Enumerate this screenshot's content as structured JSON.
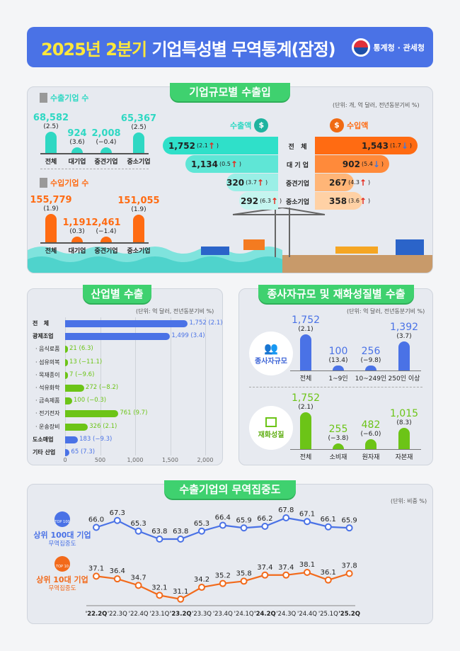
{
  "header": {
    "title_year": "2025년 2분기",
    "title_rest": "기업특성별 무역통계(잠정)",
    "agency": "통계청 · 관세청"
  },
  "colors": {
    "header": "#4a72e6",
    "accent_title": "#ffe83a",
    "pill": "#3fd16f",
    "export": "#2fd8c3",
    "import": "#ff6b12",
    "blue": "#4a72e6",
    "green": "#6cc417"
  },
  "section1": {
    "title": "기업규모별 수출입",
    "unit": "(단위: 개, 억 달러, 전년동분기비 %)",
    "export_firms": {
      "label": "수출기업 수",
      "items": [
        {
          "cat": "전체",
          "value": 68582,
          "text": "68,582",
          "pct": "(2.5)"
        },
        {
          "cat": "대기업",
          "value": 924,
          "text": "924",
          "pct": "(3.6)"
        },
        {
          "cat": "중견기업",
          "value": 2008,
          "text": "2,008",
          "pct": "(−0.4)"
        },
        {
          "cat": "중소기업",
          "value": 65367,
          "text": "65,367",
          "pct": "(2.5)"
        }
      ]
    },
    "import_firms": {
      "label": "수입기업 수",
      "items": [
        {
          "cat": "전체",
          "value": 155779,
          "text": "155,779",
          "pct": "(1.9)"
        },
        {
          "cat": "대기업",
          "value": 1191,
          "text": "1,191",
          "pct": "(0.3)"
        },
        {
          "cat": "중견기업",
          "value": 2461,
          "text": "2,461",
          "pct": "(−1.4)"
        },
        {
          "cat": "중소기업",
          "value": 151055,
          "text": "151,055",
          "pct": "(1.9)"
        }
      ]
    },
    "export_amount_label": "수출액",
    "import_amount_label": "수입액",
    "categories": [
      "전   체",
      "대 기 업",
      "중견기업",
      "중소기업"
    ],
    "exports": [
      {
        "value": "1,752",
        "pct": "(2.1",
        "dir": "up"
      },
      {
        "value": "1,134",
        "pct": "(0.5",
        "dir": "up"
      },
      {
        "value": "320",
        "pct": "(3.7",
        "dir": "up"
      },
      {
        "value": "292",
        "pct": "(6.3",
        "dir": "up"
      }
    ],
    "imports": [
      {
        "value": "1,543",
        "pct": "(1.7",
        "dir": "down"
      },
      {
        "value": "902",
        "pct": "(5.4",
        "dir": "down"
      },
      {
        "value": "267",
        "pct": "(4.3",
        "dir": "up"
      },
      {
        "value": "358",
        "pct": "(3.6",
        "dir": "up"
      }
    ]
  },
  "section2": {
    "title": "산업별 수출",
    "unit": "(단위: 억 달러, 전년동분기비 %)",
    "chart_data": {
      "type": "bar",
      "orientation": "horizontal",
      "xlim": [
        0,
        2000
      ],
      "ticks": [
        "0",
        "500",
        "1,000",
        "1,500",
        "2,000"
      ],
      "tick_values": [
        0,
        500,
        1000,
        1500,
        2000
      ],
      "categories": [
        "전   체",
        "광제조업",
        "· 음식료품",
        "· 섬유의복",
        "· 목재종이",
        "· 석유화학",
        "· 금속제품",
        "· 전기전자",
        "· 운송장비",
        "도소매업",
        "기타 산업"
      ],
      "values": [
        1752,
        1499,
        21,
        13,
        7,
        272,
        100,
        761,
        326,
        183,
        65
      ],
      "labels": [
        "1,752 (2.1)",
        "1,499 (3.4)",
        "21 (6.3)",
        "13 (−11.1)",
        "7 (−9.6)",
        "272 (−8.2)",
        "100 (−0.3)",
        "761 (9.7)",
        "326 (2.1)",
        "183 (−9.3)",
        "65 (7.3)"
      ],
      "bold": [
        true,
        true,
        false,
        false,
        false,
        false,
        false,
        false,
        false,
        true,
        true
      ],
      "colors": [
        "#4a72e6",
        "#4a72e6",
        "#6cc417",
        "#6cc417",
        "#6cc417",
        "#6cc417",
        "#6cc417",
        "#6cc417",
        "#6cc417",
        "#4a72e6",
        "#4a72e6"
      ]
    }
  },
  "section3": {
    "title": "종사자규모 및 재화성질별 수출",
    "unit": "(단위: 억 달러, 전년동분기비 %)",
    "employee": {
      "label": "종사자규모",
      "chart_data": {
        "type": "bar",
        "categories": [
          "전체",
          "1~9인",
          "10~249인",
          "250인 이상"
        ],
        "values": [
          1752,
          100,
          256,
          1392
        ],
        "labels": [
          "1,752",
          "100",
          "256",
          "1,392"
        ],
        "pct": [
          "(2.1)",
          "(13.4)",
          "(−9.8)",
          "(3.7)"
        ]
      }
    },
    "goods": {
      "label": "재화성질",
      "chart_data": {
        "type": "bar",
        "categories": [
          "전체",
          "소비재",
          "원자재",
          "자본재"
        ],
        "values": [
          1752,
          255,
          482,
          1015
        ],
        "labels": [
          "1,752",
          "255",
          "482",
          "1,015"
        ],
        "pct": [
          "(2.1)",
          "(−3.8)",
          "(−6.0)",
          "(8.3)"
        ]
      }
    }
  },
  "section4": {
    "title": "수출기업의 무역집중도",
    "unit": "(단위: 비중 %)",
    "chart_data": {
      "type": "line",
      "x": [
        "'22.2Q",
        "'22.3Q",
        "'22.4Q",
        "'23.1Q",
        "'23.2Q",
        "'23.3Q",
        "'23.4Q",
        "'24.1Q",
        "'24.2Q",
        "'24.3Q",
        "'24.4Q",
        "'25.1Q",
        "'25.2Q"
      ],
      "bold_x": [
        "'22.2Q",
        "'23.2Q",
        "'24.2Q",
        "'25.2Q"
      ],
      "series": [
        {
          "name": "상위 100대 기업",
          "subtitle": "무역집중도",
          "badge": "TOP 100",
          "color": "#4a72e6",
          "values": [
            66.0,
            67.3,
            65.3,
            63.8,
            63.8,
            65.3,
            66.4,
            65.9,
            66.2,
            67.8,
            67.1,
            66.1,
            65.9
          ]
        },
        {
          "name": "상위 10대 기업",
          "subtitle": "무역집중도",
          "badge": "TOP 10",
          "color": "#f26a1b",
          "values": [
            37.1,
            36.4,
            34.7,
            32.1,
            31.1,
            34.2,
            35.2,
            35.8,
            37.4,
            37.4,
            38.1,
            36.1,
            37.8
          ]
        }
      ]
    }
  }
}
